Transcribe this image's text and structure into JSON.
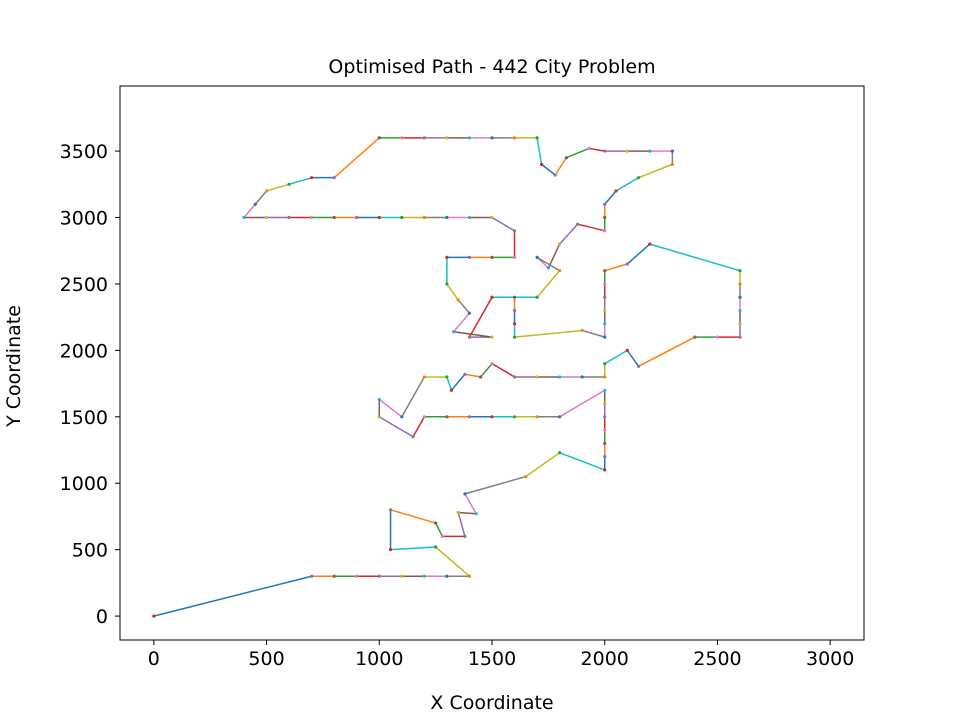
{
  "chart_data": {
    "type": "line",
    "title": "Optimised Path - 442 City Problem",
    "xlabel": "X Coordinate",
    "ylabel": "Y Coordinate",
    "xlim": [
      -150,
      3150
    ],
    "ylim": [
      -180,
      3990
    ],
    "xticks": [
      0,
      500,
      1000,
      1500,
      2000,
      2500,
      3000
    ],
    "yticks": [
      0,
      500,
      1000,
      1500,
      2000,
      2500,
      3000,
      3500
    ],
    "grid": false,
    "legend": "none",
    "segment_colors": [
      "#1f77b4",
      "#ff7f0e",
      "#2ca02c",
      "#d62728",
      "#9467bd",
      "#8c564b",
      "#e377c2",
      "#7f7f7f",
      "#bcbd22",
      "#17becf"
    ],
    "path": [
      [
        0,
        0
      ],
      [
        700,
        300
      ],
      [
        800,
        300
      ],
      [
        900,
        300
      ],
      [
        1000,
        300
      ],
      [
        1100,
        300
      ],
      [
        1200,
        300
      ],
      [
        1300,
        300
      ],
      [
        1400,
        300
      ],
      [
        1250,
        520
      ],
      [
        1050,
        500
      ],
      [
        1050,
        800
      ],
      [
        1250,
        700
      ],
      [
        1280,
        600
      ],
      [
        1380,
        600
      ],
      [
        1350,
        780
      ],
      [
        1430,
        770
      ],
      [
        1380,
        920
      ],
      [
        1650,
        1050
      ],
      [
        1800,
        1230
      ],
      [
        2000,
        1100
      ],
      [
        2000,
        1200
      ],
      [
        2000,
        1300
      ],
      [
        2000,
        1400
      ],
      [
        2000,
        1500
      ],
      [
        2000,
        1600
      ],
      [
        2000,
        1700
      ],
      [
        1800,
        1500
      ],
      [
        1700,
        1500
      ],
      [
        1600,
        1500
      ],
      [
        1500,
        1500
      ],
      [
        1400,
        1500
      ],
      [
        1300,
        1500
      ],
      [
        1200,
        1500
      ],
      [
        1150,
        1350
      ],
      [
        1000,
        1500
      ],
      [
        1000,
        1630
      ],
      [
        1100,
        1500
      ],
      [
        1200,
        1800
      ],
      [
        1300,
        1800
      ],
      [
        1320,
        1700
      ],
      [
        1380,
        1820
      ],
      [
        1450,
        1800
      ],
      [
        1500,
        1900
      ],
      [
        1600,
        1800
      ],
      [
        1700,
        1800
      ],
      [
        1800,
        1800
      ],
      [
        1900,
        1800
      ],
      [
        2000,
        1800
      ],
      [
        2000,
        1900
      ],
      [
        2100,
        2000
      ],
      [
        2150,
        1880
      ],
      [
        2400,
        2100
      ],
      [
        2500,
        2100
      ],
      [
        2600,
        2100
      ],
      [
        2600,
        2200
      ],
      [
        2600,
        2300
      ],
      [
        2600,
        2400
      ],
      [
        2600,
        2500
      ],
      [
        2600,
        2600
      ],
      [
        2200,
        2800
      ],
      [
        2100,
        2650
      ],
      [
        2000,
        2600
      ],
      [
        2000,
        2500
      ],
      [
        2000,
        2400
      ],
      [
        2000,
        2300
      ],
      [
        2000,
        2200
      ],
      [
        2000,
        2100
      ],
      [
        1900,
        2150
      ],
      [
        1600,
        2100
      ],
      [
        1600,
        2200
      ],
      [
        1600,
        2300
      ],
      [
        1600,
        2400
      ],
      [
        1500,
        2400
      ],
      [
        1400,
        2100
      ],
      [
        1500,
        2100
      ],
      [
        1330,
        2140
      ],
      [
        1400,
        2280
      ],
      [
        1350,
        2380
      ],
      [
        1300,
        2500
      ],
      [
        1300,
        2700
      ],
      [
        1400,
        2700
      ],
      [
        1500,
        2700
      ],
      [
        1600,
        2700
      ],
      [
        1600,
        2900
      ],
      [
        1500,
        3000
      ],
      [
        1400,
        3000
      ],
      [
        1300,
        3000
      ],
      [
        1200,
        3000
      ],
      [
        1100,
        3000
      ],
      [
        1000,
        3000
      ],
      [
        900,
        3000
      ],
      [
        800,
        3000
      ],
      [
        700,
        3000
      ],
      [
        600,
        3000
      ],
      [
        500,
        3000
      ],
      [
        400,
        3000
      ],
      [
        450,
        3100
      ],
      [
        500,
        3200
      ],
      [
        600,
        3250
      ],
      [
        700,
        3300
      ],
      [
        800,
        3300
      ],
      [
        1000,
        3600
      ],
      [
        1100,
        3600
      ],
      [
        1200,
        3600
      ],
      [
        1300,
        3600
      ],
      [
        1400,
        3600
      ],
      [
        1500,
        3600
      ],
      [
        1600,
        3600
      ],
      [
        1700,
        3600
      ],
      [
        1720,
        3400
      ],
      [
        1780,
        3320
      ],
      [
        1830,
        3450
      ],
      [
        1930,
        3520
      ],
      [
        2000,
        3500
      ],
      [
        2100,
        3500
      ],
      [
        2200,
        3500
      ],
      [
        2300,
        3500
      ],
      [
        2300,
        3400
      ],
      [
        2150,
        3300
      ],
      [
        2050,
        3200
      ],
      [
        2000,
        3100
      ],
      [
        2000,
        3000
      ],
      [
        2000,
        2900
      ],
      [
        1880,
        2950
      ],
      [
        1800,
        2800
      ],
      [
        1750,
        2620
      ],
      [
        1700,
        2700
      ],
      [
        1800,
        2600
      ],
      [
        1700,
        2400
      ],
      [
        1500,
        2400
      ]
    ]
  }
}
